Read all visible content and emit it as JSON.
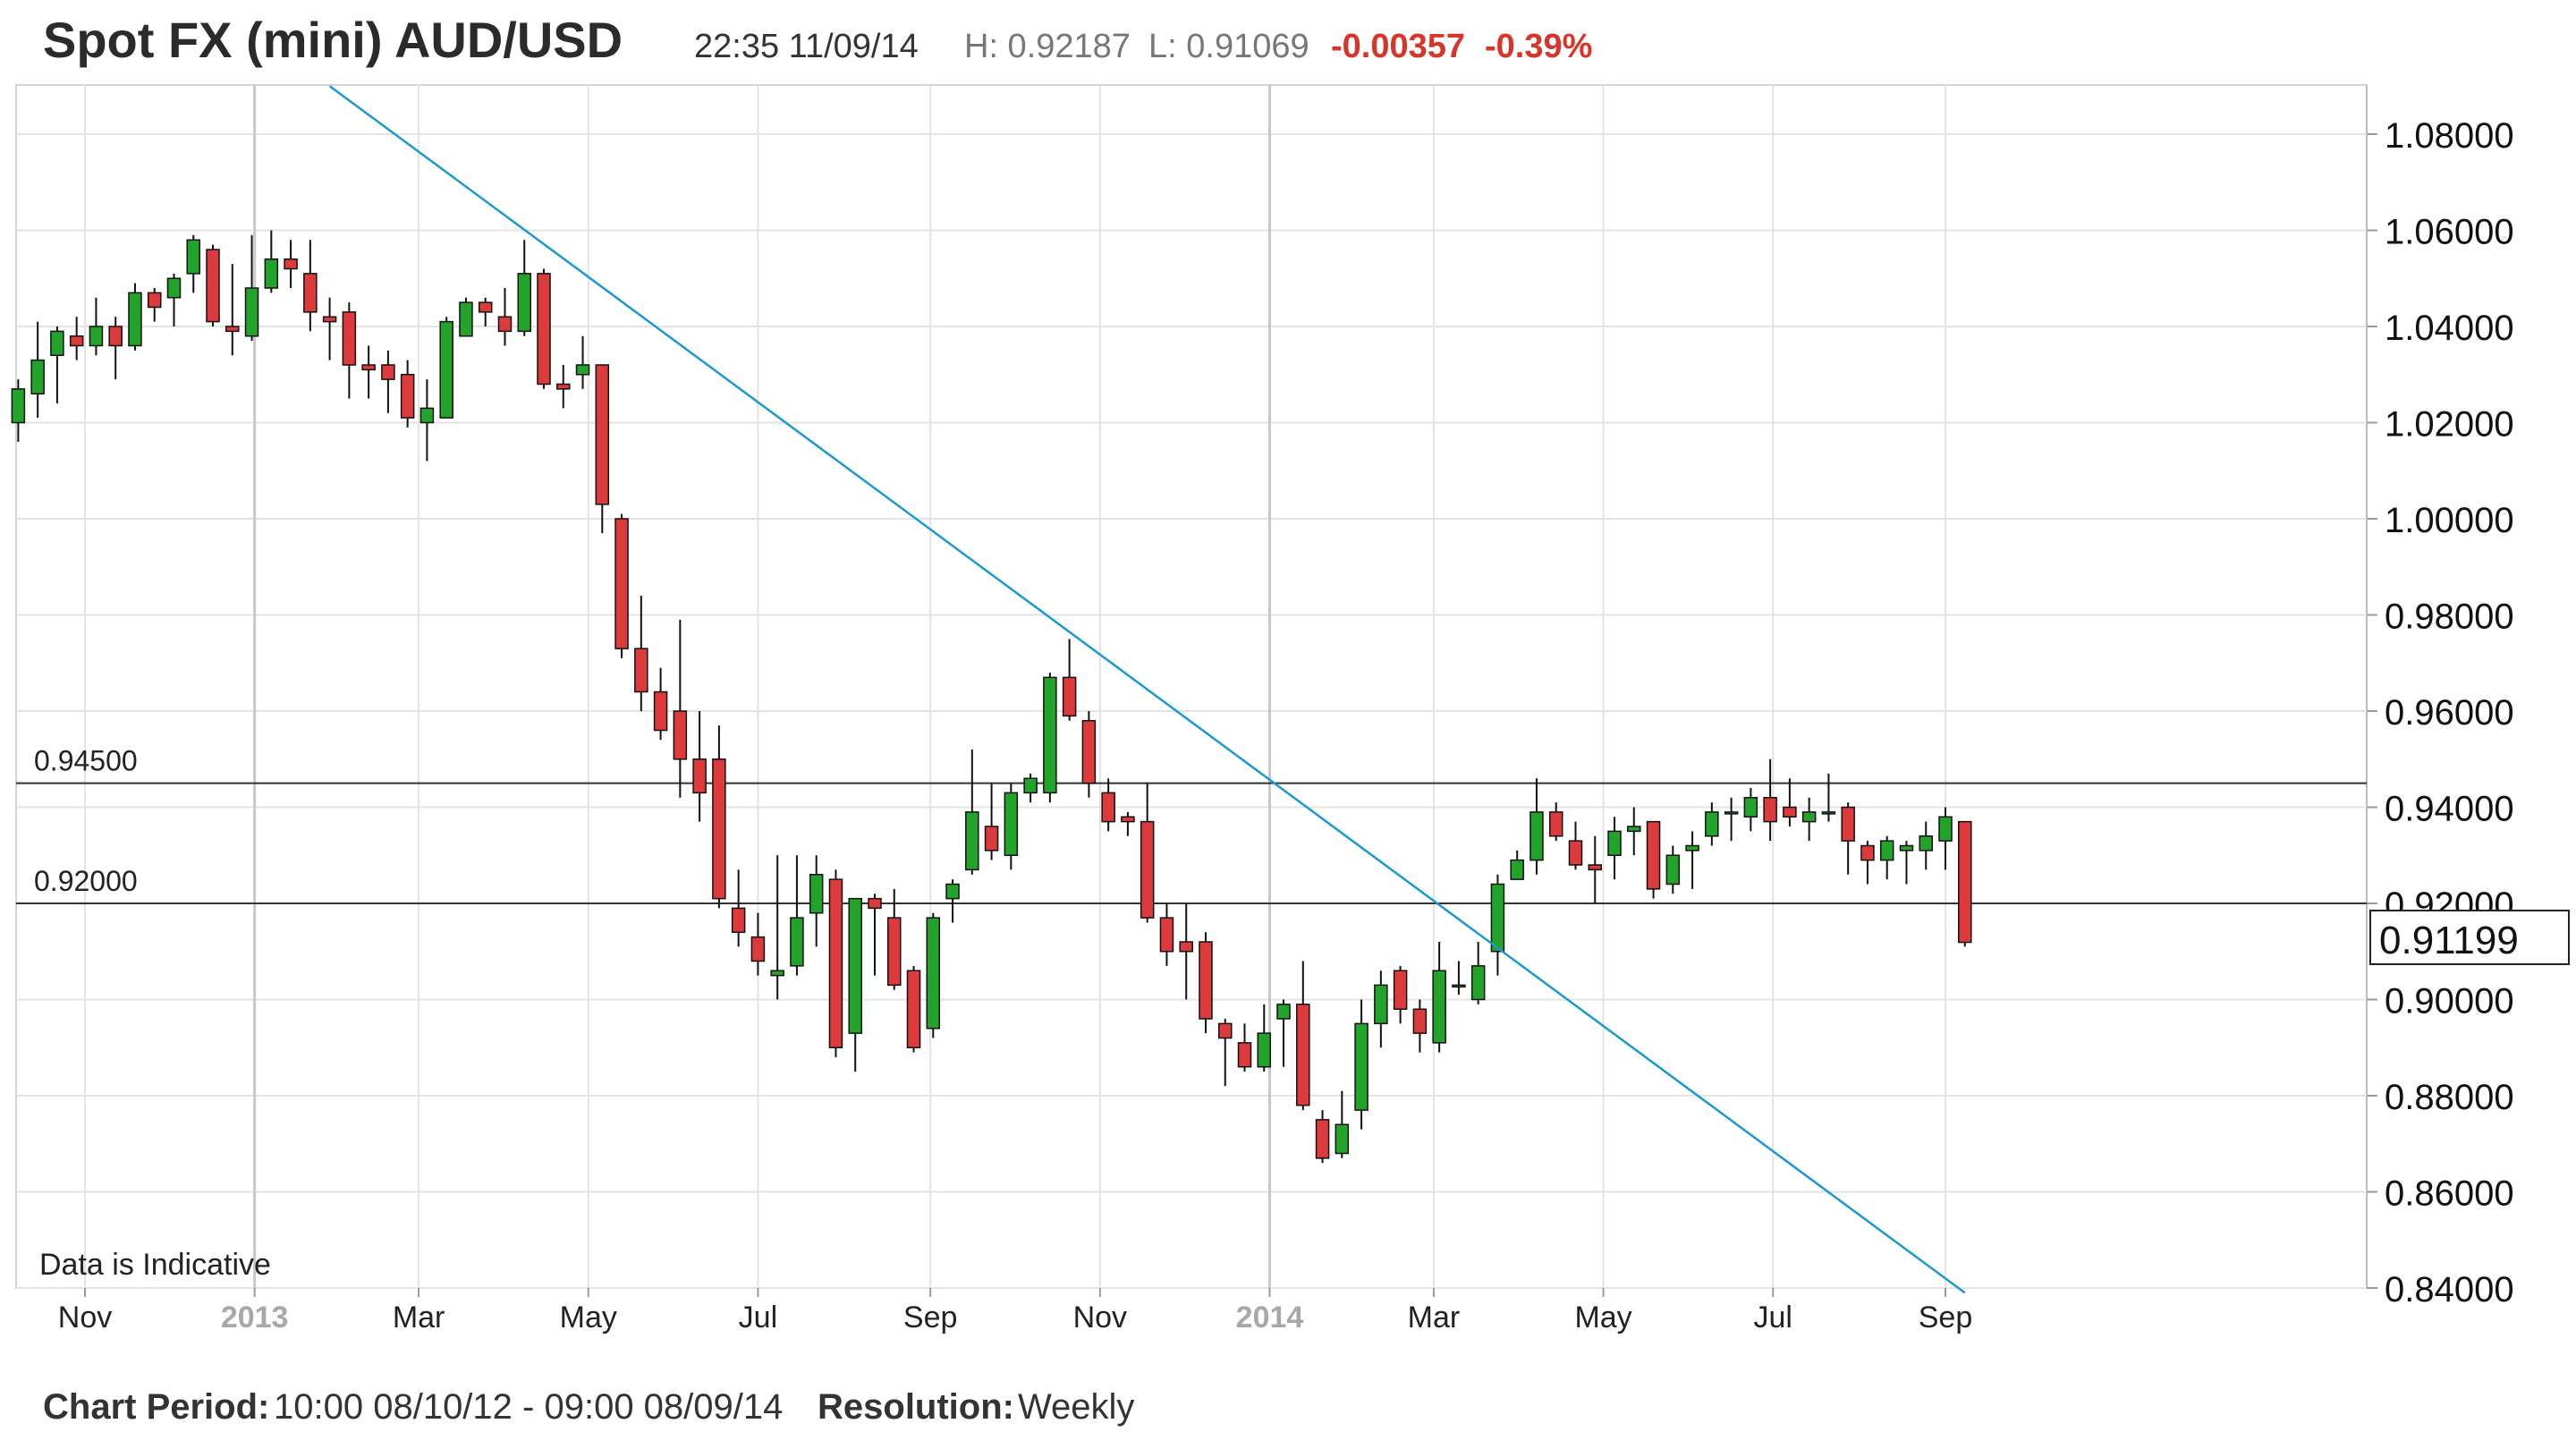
{
  "header": {
    "title": "Spot FX (mini) AUD/USD",
    "datetime": "22:35 11/09/14",
    "high": "H: 0.92187",
    "low": "L: 0.91069",
    "change": "-0.00357",
    "change_pct": "-0.39%"
  },
  "footer": {
    "period_label": "Chart Period:",
    "period_value": "10:00 08/10/12 - 09:00 08/09/14",
    "resolution_label": "Resolution:",
    "resolution_value": "Weekly"
  },
  "colors": {
    "up": "#22a32a",
    "down": "#dd3b3b",
    "trendline": "#1a98d2",
    "change_negative": "#d8352a",
    "grid": "#e3e3e3"
  },
  "chart_data": {
    "type": "candlestick",
    "resolution": "Weekly",
    "ylim": [
      0.84,
      1.09
    ],
    "y_ticks": [
      "1.08000",
      "1.06000",
      "1.04000",
      "1.02000",
      "1.00000",
      "0.98000",
      "0.96000",
      "0.94000",
      "0.92000",
      "0.90000",
      "0.88000",
      "0.86000",
      "0.84000"
    ],
    "x_ticks": [
      {
        "label": "Nov",
        "date": "2012-11-01",
        "year": false
      },
      {
        "label": "2013",
        "date": "2013-01-01",
        "year": true
      },
      {
        "label": "Mar",
        "date": "2013-03-01",
        "year": false
      },
      {
        "label": "May",
        "date": "2013-05-01",
        "year": false
      },
      {
        "label": "Jul",
        "date": "2013-07-01",
        "year": false
      },
      {
        "label": "Sep",
        "date": "2013-09-01",
        "year": false
      },
      {
        "label": "Nov",
        "date": "2013-11-01",
        "year": false
      },
      {
        "label": "2014",
        "date": "2014-01-01",
        "year": true
      },
      {
        "label": "Mar",
        "date": "2014-03-01",
        "year": false
      },
      {
        "label": "May",
        "date": "2014-05-01",
        "year": false
      },
      {
        "label": "Jul",
        "date": "2014-07-01",
        "year": false
      },
      {
        "label": "Sep",
        "date": "2014-09-01",
        "year": false
      }
    ],
    "candles": [
      {
        "date": "2012-10-08",
        "o": 1.02,
        "h": 1.029,
        "l": 1.016,
        "c": 1.027
      },
      {
        "date": "2012-10-15",
        "o": 1.026,
        "h": 1.041,
        "l": 1.021,
        "c": 1.033
      },
      {
        "date": "2012-10-22",
        "o": 1.034,
        "h": 1.04,
        "l": 1.024,
        "c": 1.039
      },
      {
        "date": "2012-10-29",
        "o": 1.038,
        "h": 1.042,
        "l": 1.033,
        "c": 1.036
      },
      {
        "date": "2012-11-05",
        "o": 1.036,
        "h": 1.046,
        "l": 1.034,
        "c": 1.04
      },
      {
        "date": "2012-11-12",
        "o": 1.04,
        "h": 1.042,
        "l": 1.029,
        "c": 1.036
      },
      {
        "date": "2012-11-19",
        "o": 1.036,
        "h": 1.049,
        "l": 1.035,
        "c": 1.047
      },
      {
        "date": "2012-11-26",
        "o": 1.047,
        "h": 1.048,
        "l": 1.041,
        "c": 1.044
      },
      {
        "date": "2012-12-03",
        "o": 1.046,
        "h": 1.051,
        "l": 1.04,
        "c": 1.05
      },
      {
        "date": "2012-12-10",
        "o": 1.051,
        "h": 1.059,
        "l": 1.047,
        "c": 1.058
      },
      {
        "date": "2012-12-17",
        "o": 1.056,
        "h": 1.057,
        "l": 1.04,
        "c": 1.041
      },
      {
        "date": "2012-12-24",
        "o": 1.04,
        "h": 1.053,
        "l": 1.034,
        "c": 1.039
      },
      {
        "date": "2012-12-31",
        "o": 1.038,
        "h": 1.059,
        "l": 1.037,
        "c": 1.048
      },
      {
        "date": "2013-01-07",
        "o": 1.048,
        "h": 1.06,
        "l": 1.047,
        "c": 1.054
      },
      {
        "date": "2013-01-14",
        "o": 1.054,
        "h": 1.058,
        "l": 1.048,
        "c": 1.052
      },
      {
        "date": "2013-01-21",
        "o": 1.051,
        "h": 1.058,
        "l": 1.039,
        "c": 1.043
      },
      {
        "date": "2013-01-28",
        "o": 1.042,
        "h": 1.046,
        "l": 1.033,
        "c": 1.041
      },
      {
        "date": "2013-02-04",
        "o": 1.043,
        "h": 1.045,
        "l": 1.025,
        "c": 1.032
      },
      {
        "date": "2013-02-11",
        "o": 1.032,
        "h": 1.036,
        "l": 1.025,
        "c": 1.031
      },
      {
        "date": "2013-02-18",
        "o": 1.032,
        "h": 1.035,
        "l": 1.022,
        "c": 1.029
      },
      {
        "date": "2013-02-25",
        "o": 1.03,
        "h": 1.033,
        "l": 1.019,
        "c": 1.021
      },
      {
        "date": "2013-03-04",
        "o": 1.02,
        "h": 1.029,
        "l": 1.012,
        "c": 1.023
      },
      {
        "date": "2013-03-11",
        "o": 1.021,
        "h": 1.042,
        "l": 1.021,
        "c": 1.041
      },
      {
        "date": "2013-03-18",
        "o": 1.038,
        "h": 1.046,
        "l": 1.038,
        "c": 1.045
      },
      {
        "date": "2013-03-25",
        "o": 1.045,
        "h": 1.046,
        "l": 1.04,
        "c": 1.043
      },
      {
        "date": "2013-04-01",
        "o": 1.042,
        "h": 1.048,
        "l": 1.036,
        "c": 1.039
      },
      {
        "date": "2013-04-08",
        "o": 1.039,
        "h": 1.058,
        "l": 1.038,
        "c": 1.051
      },
      {
        "date": "2013-04-15",
        "o": 1.051,
        "h": 1.052,
        "l": 1.027,
        "c": 1.028
      },
      {
        "date": "2013-04-22",
        "o": 1.028,
        "h": 1.032,
        "l": 1.023,
        "c": 1.027
      },
      {
        "date": "2013-04-29",
        "o": 1.03,
        "h": 1.038,
        "l": 1.027,
        "c": 1.032
      },
      {
        "date": "2013-05-06",
        "o": 1.032,
        "h": 1.032,
        "l": 0.997,
        "c": 1.003
      },
      {
        "date": "2013-05-13",
        "o": 1.0,
        "h": 1.001,
        "l": 0.971,
        "c": 0.973
      },
      {
        "date": "2013-05-20",
        "o": 0.973,
        "h": 0.984,
        "l": 0.96,
        "c": 0.964
      },
      {
        "date": "2013-05-27",
        "o": 0.964,
        "h": 0.969,
        "l": 0.954,
        "c": 0.956
      },
      {
        "date": "2013-06-03",
        "o": 0.96,
        "h": 0.979,
        "l": 0.942,
        "c": 0.95
      },
      {
        "date": "2013-06-10",
        "o": 0.95,
        "h": 0.96,
        "l": 0.937,
        "c": 0.943
      },
      {
        "date": "2013-06-17",
        "o": 0.95,
        "h": 0.957,
        "l": 0.919,
        "c": 0.921
      },
      {
        "date": "2013-06-24",
        "o": 0.919,
        "h": 0.927,
        "l": 0.911,
        "c": 0.914
      },
      {
        "date": "2013-07-01",
        "o": 0.913,
        "h": 0.918,
        "l": 0.905,
        "c": 0.908
      },
      {
        "date": "2013-07-08",
        "o": 0.905,
        "h": 0.93,
        "l": 0.9,
        "c": 0.906
      },
      {
        "date": "2013-07-15",
        "o": 0.907,
        "h": 0.93,
        "l": 0.905,
        "c": 0.917
      },
      {
        "date": "2013-07-22",
        "o": 0.918,
        "h": 0.93,
        "l": 0.911,
        "c": 0.926
      },
      {
        "date": "2013-07-29",
        "o": 0.925,
        "h": 0.927,
        "l": 0.888,
        "c": 0.89
      },
      {
        "date": "2013-08-05",
        "o": 0.893,
        "h": 0.921,
        "l": 0.885,
        "c": 0.921
      },
      {
        "date": "2013-08-12",
        "o": 0.921,
        "h": 0.922,
        "l": 0.905,
        "c": 0.919
      },
      {
        "date": "2013-08-19",
        "o": 0.917,
        "h": 0.923,
        "l": 0.902,
        "c": 0.903
      },
      {
        "date": "2013-08-26",
        "o": 0.906,
        "h": 0.907,
        "l": 0.889,
        "c": 0.89
      },
      {
        "date": "2013-09-02",
        "o": 0.894,
        "h": 0.918,
        "l": 0.892,
        "c": 0.917
      },
      {
        "date": "2013-09-09",
        "o": 0.921,
        "h": 0.925,
        "l": 0.916,
        "c": 0.924
      },
      {
        "date": "2013-09-16",
        "o": 0.927,
        "h": 0.952,
        "l": 0.926,
        "c": 0.939
      },
      {
        "date": "2013-09-23",
        "o": 0.936,
        "h": 0.945,
        "l": 0.929,
        "c": 0.931
      },
      {
        "date": "2013-09-30",
        "o": 0.93,
        "h": 0.945,
        "l": 0.927,
        "c": 0.943
      },
      {
        "date": "2013-10-07",
        "o": 0.943,
        "h": 0.947,
        "l": 0.941,
        "c": 0.946
      },
      {
        "date": "2013-10-14",
        "o": 0.943,
        "h": 0.968,
        "l": 0.941,
        "c": 0.967
      },
      {
        "date": "2013-10-21",
        "o": 0.967,
        "h": 0.975,
        "l": 0.958,
        "c": 0.959
      },
      {
        "date": "2013-10-28",
        "o": 0.958,
        "h": 0.96,
        "l": 0.942,
        "c": 0.945
      },
      {
        "date": "2013-11-04",
        "o": 0.943,
        "h": 0.946,
        "l": 0.935,
        "c": 0.937
      },
      {
        "date": "2013-11-11",
        "o": 0.938,
        "h": 0.939,
        "l": 0.934,
        "c": 0.937
      },
      {
        "date": "2013-11-18",
        "o": 0.937,
        "h": 0.945,
        "l": 0.916,
        "c": 0.917
      },
      {
        "date": "2013-11-25",
        "o": 0.917,
        "h": 0.92,
        "l": 0.907,
        "c": 0.91
      },
      {
        "date": "2013-12-02",
        "o": 0.912,
        "h": 0.92,
        "l": 0.9,
        "c": 0.91
      },
      {
        "date": "2013-12-09",
        "o": 0.912,
        "h": 0.914,
        "l": 0.893,
        "c": 0.896
      },
      {
        "date": "2013-12-16",
        "o": 0.895,
        "h": 0.896,
        "l": 0.882,
        "c": 0.892
      },
      {
        "date": "2013-12-23",
        "o": 0.891,
        "h": 0.895,
        "l": 0.885,
        "c": 0.886
      },
      {
        "date": "2013-12-30",
        "o": 0.886,
        "h": 0.899,
        "l": 0.885,
        "c": 0.893
      },
      {
        "date": "2014-01-06",
        "o": 0.896,
        "h": 0.9,
        "l": 0.886,
        "c": 0.899
      },
      {
        "date": "2014-01-13",
        "o": 0.899,
        "h": 0.908,
        "l": 0.877,
        "c": 0.878
      },
      {
        "date": "2014-01-20",
        "o": 0.875,
        "h": 0.877,
        "l": 0.866,
        "c": 0.867
      },
      {
        "date": "2014-01-27",
        "o": 0.868,
        "h": 0.881,
        "l": 0.867,
        "c": 0.874
      },
      {
        "date": "2014-02-03",
        "o": 0.877,
        "h": 0.9,
        "l": 0.873,
        "c": 0.895
      },
      {
        "date": "2014-02-10",
        "o": 0.895,
        "h": 0.906,
        "l": 0.89,
        "c": 0.903
      },
      {
        "date": "2014-02-17",
        "o": 0.906,
        "h": 0.907,
        "l": 0.895,
        "c": 0.898
      },
      {
        "date": "2014-02-24",
        "o": 0.898,
        "h": 0.9,
        "l": 0.889,
        "c": 0.893
      },
      {
        "date": "2014-03-03",
        "o": 0.891,
        "h": 0.912,
        "l": 0.889,
        "c": 0.906
      },
      {
        "date": "2014-03-10",
        "o": 0.903,
        "h": 0.908,
        "l": 0.901,
        "c": 0.903
      },
      {
        "date": "2014-03-17",
        "o": 0.9,
        "h": 0.912,
        "l": 0.899,
        "c": 0.907
      },
      {
        "date": "2014-03-24",
        "o": 0.91,
        "h": 0.926,
        "l": 0.905,
        "c": 0.924
      },
      {
        "date": "2014-03-31",
        "o": 0.925,
        "h": 0.931,
        "l": 0.925,
        "c": 0.929
      },
      {
        "date": "2014-04-07",
        "o": 0.929,
        "h": 0.946,
        "l": 0.926,
        "c": 0.939
      },
      {
        "date": "2014-04-14",
        "o": 0.939,
        "h": 0.941,
        "l": 0.933,
        "c": 0.934
      },
      {
        "date": "2014-04-21",
        "o": 0.933,
        "h": 0.937,
        "l": 0.927,
        "c": 0.928
      },
      {
        "date": "2014-04-28",
        "o": 0.928,
        "h": 0.934,
        "l": 0.92,
        "c": 0.927
      },
      {
        "date": "2014-05-05",
        "o": 0.93,
        "h": 0.938,
        "l": 0.925,
        "c": 0.935
      },
      {
        "date": "2014-05-12",
        "o": 0.935,
        "h": 0.94,
        "l": 0.93,
        "c": 0.936
      },
      {
        "date": "2014-05-19",
        "o": 0.937,
        "h": 0.937,
        "l": 0.921,
        "c": 0.923
      },
      {
        "date": "2014-05-26",
        "o": 0.924,
        "h": 0.932,
        "l": 0.922,
        "c": 0.93
      },
      {
        "date": "2014-06-02",
        "o": 0.931,
        "h": 0.935,
        "l": 0.923,
        "c": 0.932
      },
      {
        "date": "2014-06-09",
        "o": 0.934,
        "h": 0.941,
        "l": 0.932,
        "c": 0.939
      },
      {
        "date": "2014-06-16",
        "o": 0.939,
        "h": 0.942,
        "l": 0.933,
        "c": 0.939
      },
      {
        "date": "2014-06-23",
        "o": 0.938,
        "h": 0.944,
        "l": 0.935,
        "c": 0.942
      },
      {
        "date": "2014-06-30",
        "o": 0.942,
        "h": 0.95,
        "l": 0.933,
        "c": 0.937
      },
      {
        "date": "2014-07-07",
        "o": 0.94,
        "h": 0.946,
        "l": 0.936,
        "c": 0.938
      },
      {
        "date": "2014-07-14",
        "o": 0.937,
        "h": 0.942,
        "l": 0.933,
        "c": 0.939
      },
      {
        "date": "2014-07-21",
        "o": 0.939,
        "h": 0.947,
        "l": 0.937,
        "c": 0.939
      },
      {
        "date": "2014-07-28",
        "o": 0.94,
        "h": 0.941,
        "l": 0.926,
        "c": 0.933
      },
      {
        "date": "2014-08-04",
        "o": 0.932,
        "h": 0.933,
        "l": 0.924,
        "c": 0.929
      },
      {
        "date": "2014-08-11",
        "o": 0.929,
        "h": 0.934,
        "l": 0.925,
        "c": 0.933
      },
      {
        "date": "2014-08-18",
        "o": 0.931,
        "h": 0.933,
        "l": 0.924,
        "c": 0.932
      },
      {
        "date": "2014-08-25",
        "o": 0.931,
        "h": 0.937,
        "l": 0.927,
        "c": 0.934
      },
      {
        "date": "2014-09-01",
        "o": 0.933,
        "h": 0.94,
        "l": 0.927,
        "c": 0.938
      },
      {
        "date": "2014-09-08",
        "o": 0.937,
        "h": 0.937,
        "l": 0.911,
        "c": 0.9119
      }
    ],
    "horizontal_lines": [
      {
        "value": 0.945,
        "label": "0.94500"
      },
      {
        "value": 0.92,
        "label": "0.92000"
      }
    ],
    "trendline": {
      "from": {
        "date": "2013-01-28",
        "value": 1.09
      },
      "to": {
        "date": "2014-09-08",
        "value": 0.839
      }
    },
    "last_price": {
      "value": 0.91199,
      "label": "0.91199"
    },
    "annotation": "Data is Indicative"
  }
}
